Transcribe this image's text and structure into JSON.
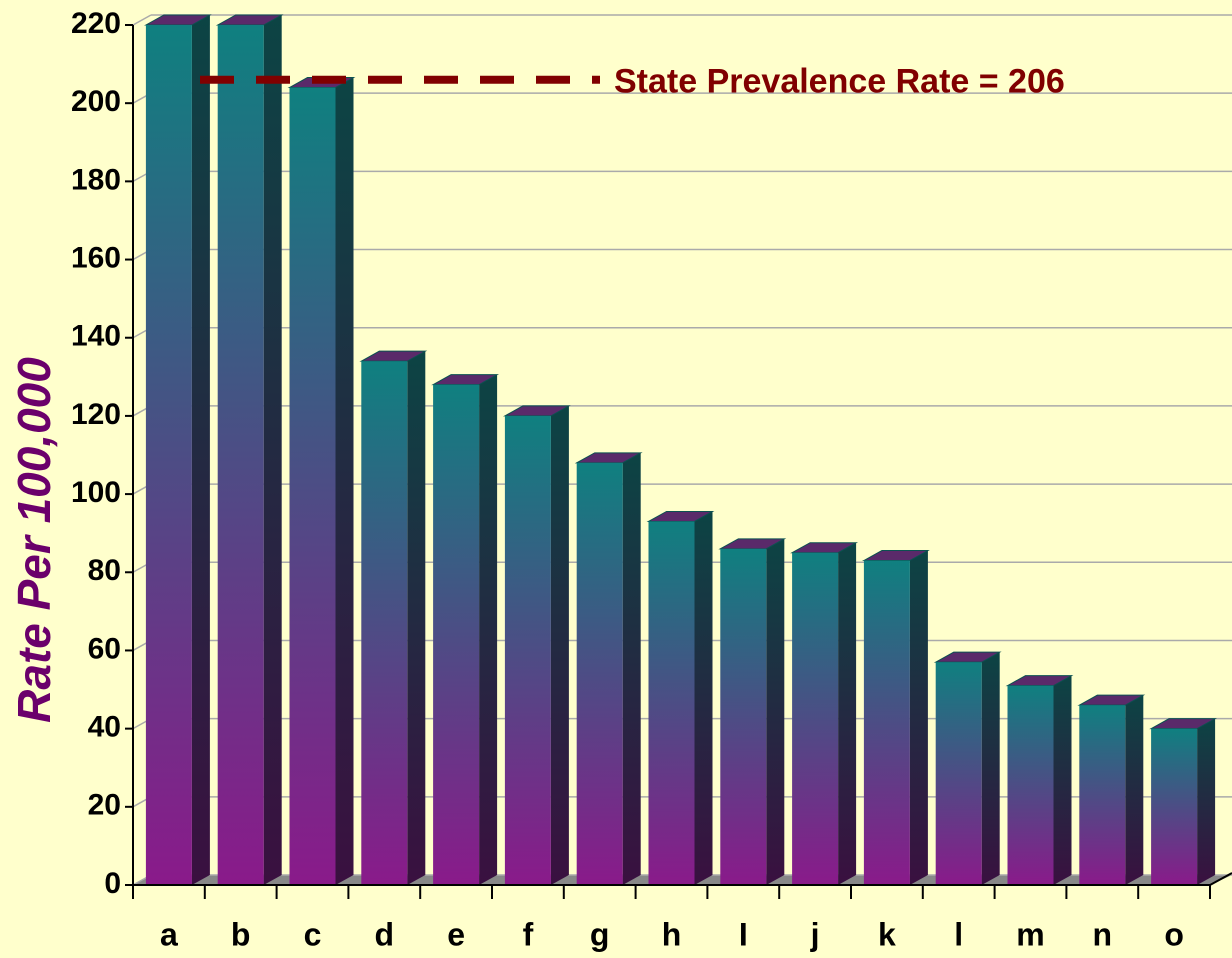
{
  "chart_data": {
    "type": "bar",
    "y_label": "Rate  Per  100,000",
    "categories": [
      "a",
      "b",
      "c",
      "d",
      "e",
      "f",
      "g",
      "h",
      "I",
      "j",
      "k",
      "l",
      "m",
      "n",
      "o"
    ],
    "values": [
      220,
      220,
      204,
      134,
      128,
      120,
      108,
      93,
      86,
      85,
      83,
      57,
      51,
      46,
      40
    ],
    "ylim": [
      0,
      220
    ],
    "yticks": [
      0,
      20,
      40,
      60,
      80,
      100,
      120,
      140,
      160,
      180,
      200,
      220
    ],
    "grid": true,
    "reference_line": {
      "value": 206,
      "label": "State Prevalence Rate = 206",
      "color": "#800000"
    }
  }
}
